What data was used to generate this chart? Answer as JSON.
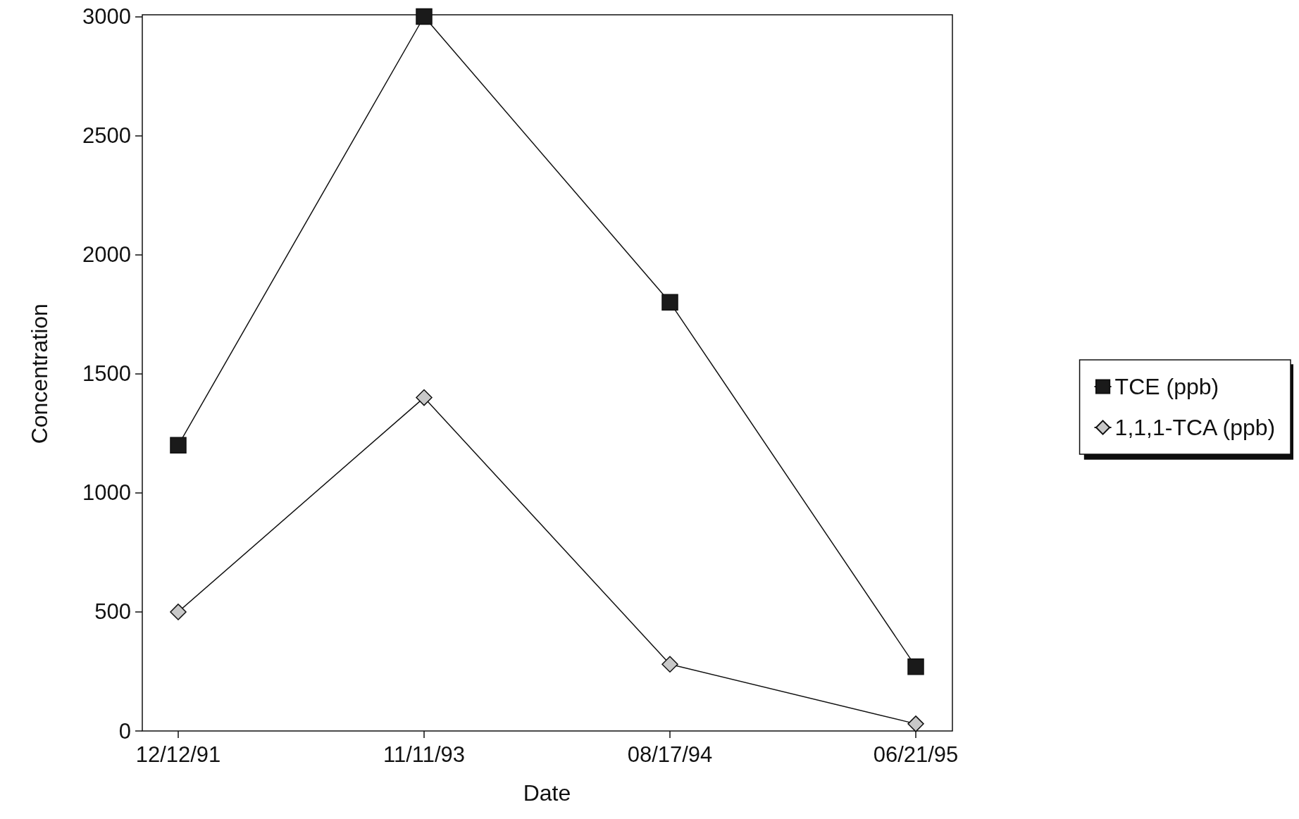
{
  "chart_data": {
    "type": "line",
    "xlabel": "Date",
    "ylabel": "Concentration",
    "categories": [
      "12/12/91",
      "11/11/93",
      "08/17/94",
      "06/21/95"
    ],
    "series": [
      {
        "name": "TCE (ppb)",
        "color": "#1a1a1a",
        "marker": "square",
        "values": [
          1200,
          3000,
          1800,
          270
        ]
      },
      {
        "name": "1,1,1-TCA (ppb)",
        "color": "#c8c8c8",
        "marker": "diamond",
        "values": [
          500,
          1400,
          280,
          30
        ]
      }
    ],
    "ylim": [
      0,
      3000
    ],
    "yticks": [
      0,
      500,
      1000,
      1500,
      2000,
      2500,
      3000
    ],
    "grid": false,
    "legend": "right",
    "line_style": "solid"
  }
}
